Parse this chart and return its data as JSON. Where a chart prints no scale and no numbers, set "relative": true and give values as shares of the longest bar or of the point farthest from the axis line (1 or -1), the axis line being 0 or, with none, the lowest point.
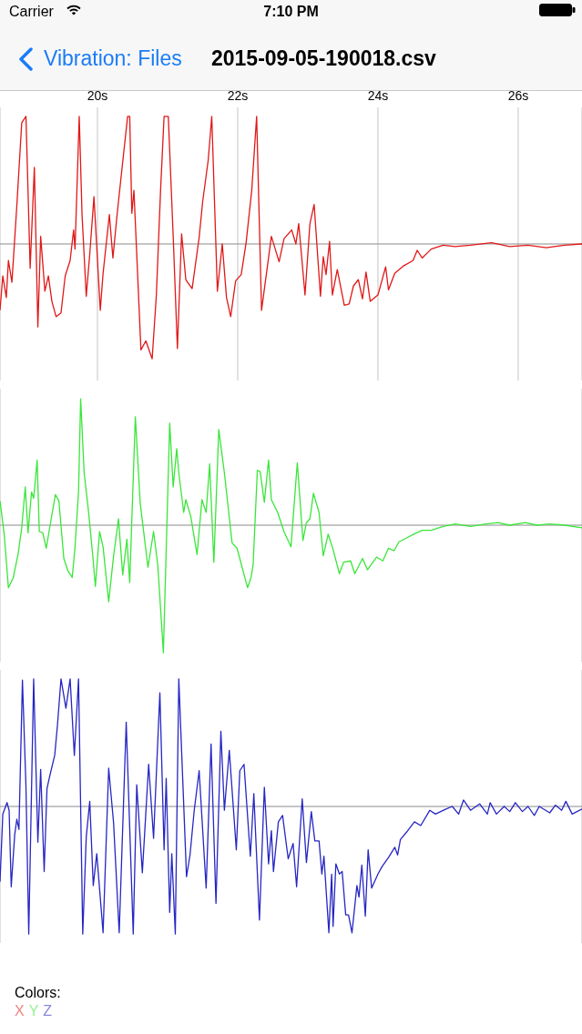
{
  "chart_data": [
    {
      "type": "line",
      "title": "2015-09-05-190018.csv",
      "annotations": [
        "Carrier",
        "7:10 PM",
        "Vibration: Files"
      ],
      "relative": true,
      "xlim": [
        18.61,
        26.91
      ],
      "xticks": [
        {
          "value": 20,
          "label": "20s"
        },
        {
          "value": 22,
          "label": "22s"
        },
        {
          "value": 24,
          "label": "24s"
        },
        {
          "value": 26,
          "label": "26s"
        }
      ],
      "grid": "x",
      "tick_labels": "x",
      "legend": "bottom",
      "series": [
        {
          "name": "X",
          "color": "#e01818",
          "x": [
            18.61,
            18.65,
            18.7,
            18.73,
            18.78,
            18.85,
            18.92,
            18.98,
            19.0,
            19.04,
            19.1,
            19.15,
            19.19,
            19.25,
            19.3,
            19.35,
            19.41,
            19.48,
            19.54,
            19.61,
            19.66,
            19.68,
            19.74,
            19.78,
            19.84,
            19.89,
            19.95,
            20.04,
            20.08,
            20.17,
            20.22,
            20.28,
            20.34,
            20.43,
            20.46,
            20.49,
            20.52,
            20.62,
            20.69,
            20.78,
            20.84,
            20.9,
            20.95,
            21.01,
            21.08,
            21.14,
            21.2,
            21.26,
            21.35,
            21.45,
            21.5,
            21.58,
            21.63,
            21.71,
            21.78,
            21.84,
            21.9,
            21.97,
            22.05,
            22.12,
            22.2,
            22.27,
            22.34,
            22.42,
            22.48,
            22.59,
            22.66,
            22.77,
            22.83,
            22.87,
            22.96,
            23.03,
            23.09,
            23.18,
            23.22,
            23.26,
            23.31,
            23.35,
            23.42,
            23.52,
            23.59,
            23.65,
            23.72,
            23.78,
            23.83,
            23.89,
            24.0,
            24.11,
            24.15,
            24.24,
            24.37,
            24.5,
            24.56,
            24.63,
            24.76,
            24.93,
            25.1,
            25.32,
            25.62,
            25.88,
            26.14,
            26.4,
            26.66,
            26.91
          ],
          "values": [
            -0.52,
            -0.25,
            -0.42,
            -0.13,
            -0.3,
            0.3,
            0.95,
            1,
            0.61,
            -0.19,
            0.6,
            -0.65,
            0.06,
            -0.37,
            -0.25,
            -0.45,
            -0.57,
            -0.54,
            -0.25,
            -0.13,
            0.11,
            -0.04,
            1,
            0.23,
            -0.41,
            -0.08,
            0.37,
            -0.52,
            -0.23,
            0.23,
            -0.11,
            0.23,
            0.54,
            1,
            1,
            0.24,
            0.42,
            -0.83,
            -0.76,
            -0.9,
            -0.4,
            0.42,
            1,
            1,
            0.06,
            -0.82,
            0.08,
            -0.28,
            -0.35,
            0.05,
            0.33,
            0.66,
            1,
            -0.37,
            0,
            -0.42,
            -0.57,
            -0.29,
            -0.24,
            0.01,
            0.42,
            1,
            -0.52,
            -0.19,
            0.06,
            -0.14,
            0.04,
            0.11,
            0,
            0.16,
            -0.4,
            0.16,
            0.31,
            -0.41,
            -0.1,
            -0.24,
            0.02,
            -0.4,
            -0.2,
            -0.48,
            -0.47,
            -0.33,
            -0.28,
            -0.43,
            -0.22,
            -0.45,
            -0.4,
            -0.18,
            -0.36,
            -0.23,
            -0.17,
            -0.13,
            -0.05,
            -0.11,
            -0.04,
            -0.01,
            -0.02,
            -0.01,
            0.01,
            -0.02,
            -0.01,
            -0.03,
            -0.01,
            0
          ]
        }
      ]
    },
    {
      "type": "line",
      "relative": true,
      "xlim": [
        18.61,
        26.91
      ],
      "xticks": [
        {
          "value": 20,
          "label": null
        },
        {
          "value": 22,
          "label": null
        },
        {
          "value": 24,
          "label": null
        },
        {
          "value": 26,
          "label": null
        }
      ],
      "grid": "x",
      "tick_labels": false,
      "legend": "bottom",
      "series": [
        {
          "name": "Y",
          "color": "#3ae63a",
          "x": [
            18.61,
            18.67,
            18.73,
            18.8,
            18.87,
            18.92,
            18.97,
            19.01,
            19.06,
            19.09,
            19.14,
            19.17,
            19.22,
            19.27,
            19.34,
            19.4,
            19.45,
            19.52,
            19.58,
            19.64,
            19.68,
            19.73,
            19.76,
            19.81,
            19.87,
            19.93,
            19.97,
            20.03,
            20.08,
            20.16,
            20.23,
            20.3,
            20.36,
            20.42,
            20.46,
            20.54,
            20.61,
            20.72,
            20.8,
            20.86,
            20.94,
            20.99,
            21.03,
            21.08,
            21.13,
            21.16,
            21.23,
            21.26,
            21.33,
            21.42,
            21.49,
            21.55,
            21.6,
            21.66,
            21.73,
            21.81,
            21.92,
            21.99,
            22.14,
            22.19,
            22.22,
            22.28,
            22.32,
            22.38,
            22.44,
            22.48,
            22.57,
            22.66,
            22.76,
            22.85,
            22.93,
            22.98,
            23.03,
            23.08,
            23.16,
            23.22,
            23.29,
            23.36,
            23.45,
            23.51,
            23.61,
            23.67,
            23.78,
            23.85,
            23.98,
            24.07,
            24.15,
            24.23,
            24.3,
            24.41,
            24.51,
            24.63,
            24.76,
            24.93,
            25.1,
            25.32,
            25.54,
            25.71,
            25.88,
            26.1,
            26.27,
            26.45,
            26.66,
            26.91
          ],
          "values": [
            0.19,
            -0.07,
            -0.49,
            -0.41,
            -0.22,
            -0.02,
            0.3,
            -0.06,
            0.26,
            0.21,
            0.51,
            -0.05,
            -0.06,
            -0.18,
            0.05,
            0.24,
            0.19,
            -0.26,
            -0.36,
            -0.41,
            -0.17,
            0.26,
            0.99,
            0.41,
            0.12,
            -0.22,
            -0.48,
            -0.05,
            -0.17,
            -0.6,
            -0.24,
            0.05,
            -0.39,
            -0.11,
            -0.45,
            0.85,
            0.17,
            -0.33,
            -0.05,
            -0.31,
            -1,
            0,
            0.8,
            0.3,
            0.6,
            0.41,
            0.1,
            0.2,
            0.07,
            -0.23,
            0.2,
            0.1,
            0.48,
            -0.29,
            0.75,
            0.41,
            -0.14,
            -0.18,
            -0.49,
            -0.41,
            -0.31,
            0.43,
            0.42,
            0.18,
            0.51,
            0.2,
            0.1,
            -0.05,
            -0.17,
            0.49,
            -0.12,
            0.02,
            0.05,
            0.25,
            0.1,
            -0.24,
            -0.07,
            -0.19,
            -0.38,
            -0.29,
            -0.28,
            -0.38,
            -0.26,
            -0.35,
            -0.25,
            -0.28,
            -0.18,
            -0.2,
            -0.13,
            -0.1,
            -0.07,
            -0.04,
            -0.04,
            -0.01,
            0.01,
            -0.01,
            0.01,
            0.02,
            0,
            0.02,
            0,
            0.01,
            0,
            -0.02
          ]
        }
      ]
    },
    {
      "type": "line",
      "relative": true,
      "xlim": [
        18.61,
        26.91
      ],
      "xticks": [
        {
          "value": 20,
          "label": null
        },
        {
          "value": 22,
          "label": null
        },
        {
          "value": 24,
          "label": null
        },
        {
          "value": 26,
          "label": null
        }
      ],
      "grid": "x",
      "tick_labels": false,
      "legend": "bottom",
      "legend_title": "Colors:",
      "series": [
        {
          "name": "Z",
          "color": "#2626c4",
          "x": [
            18.61,
            18.65,
            18.71,
            18.74,
            18.77,
            18.82,
            18.85,
            18.88,
            18.93,
            18.98,
            19.02,
            19.09,
            19.15,
            19.19,
            19.24,
            19.28,
            19.32,
            19.39,
            19.43,
            19.48,
            19.55,
            19.61,
            19.67,
            19.73,
            19.79,
            19.84,
            19.89,
            19.94,
            19.99,
            20.08,
            20.16,
            20.23,
            20.31,
            20.41,
            20.51,
            20.56,
            20.64,
            20.73,
            20.8,
            20.89,
            20.95,
            20.98,
            21.03,
            21.06,
            21.11,
            21.16,
            21.27,
            21.32,
            21.38,
            21.45,
            21.55,
            21.62,
            21.69,
            21.76,
            21.81,
            21.88,
            21.98,
            22.03,
            22.09,
            22.18,
            22.23,
            22.31,
            22.38,
            22.44,
            22.48,
            22.51,
            22.58,
            22.64,
            22.72,
            22.79,
            22.84,
            22.92,
            22.98,
            23.05,
            23.1,
            23.16,
            23.2,
            23.23,
            23.3,
            23.34,
            23.36,
            23.4,
            23.45,
            23.49,
            23.54,
            23.58,
            23.63,
            23.7,
            23.73,
            23.77,
            23.82,
            23.86,
            23.91,
            24.0,
            24.06,
            24.15,
            24.24,
            24.28,
            24.32,
            24.41,
            24.52,
            24.61,
            24.74,
            24.82,
            24.97,
            25.06,
            25.15,
            25.22,
            25.32,
            25.45,
            25.56,
            25.6,
            25.69,
            25.8,
            25.88,
            25.96,
            26.06,
            26.14,
            26.23,
            26.3,
            26.45,
            26.53,
            26.62,
            26.68,
            26.77,
            26.91
          ],
          "values": [
            -0.59,
            -0.06,
            0.03,
            -0.03,
            -0.63,
            -0.22,
            -0.1,
            -0.18,
            0.99,
            0.16,
            -1,
            1,
            -0.28,
            0.29,
            -0.51,
            0.14,
            0.24,
            0.4,
            0.64,
            1,
            0.77,
            1,
            0.4,
            1,
            -1,
            -0.24,
            0.04,
            -0.62,
            -0.37,
            -0.99,
            0.3,
            -0.13,
            -0.99,
            0.66,
            -1,
            0.17,
            -0.52,
            0.33,
            -0.25,
            0.89,
            -0.34,
            0.22,
            -0.83,
            -0.37,
            -1,
            1,
            -0.55,
            -0.38,
            -0.03,
            0.28,
            -0.64,
            0.49,
            -0.76,
            0.59,
            -0.03,
            0.44,
            -0.34,
            0.28,
            0.33,
            -0.39,
            0.1,
            -0.89,
            0.15,
            -0.45,
            -0.19,
            -0.51,
            -0.12,
            -0.07,
            -0.41,
            -0.29,
            -0.63,
            0.06,
            -0.44,
            -0.04,
            -0.27,
            -0.27,
            -0.53,
            -0.39,
            -0.99,
            -0.53,
            -0.94,
            -0.45,
            -0.53,
            -0.51,
            -0.85,
            -0.85,
            -0.99,
            -0.62,
            -0.71,
            -0.46,
            -0.86,
            -0.34,
            -0.64,
            -0.53,
            -0.47,
            -0.4,
            -0.32,
            -0.38,
            -0.26,
            -0.2,
            -0.12,
            -0.15,
            -0.03,
            -0.06,
            -0.02,
            0,
            -0.06,
            0.05,
            -0.03,
            0.02,
            -0.06,
            0.03,
            -0.06,
            0,
            -0.04,
            0.03,
            -0.04,
            0,
            -0.07,
            0,
            -0.05,
            0.01,
            -0.03,
            0.04,
            -0.06,
            -0.02
          ]
        }
      ]
    }
  ]
}
